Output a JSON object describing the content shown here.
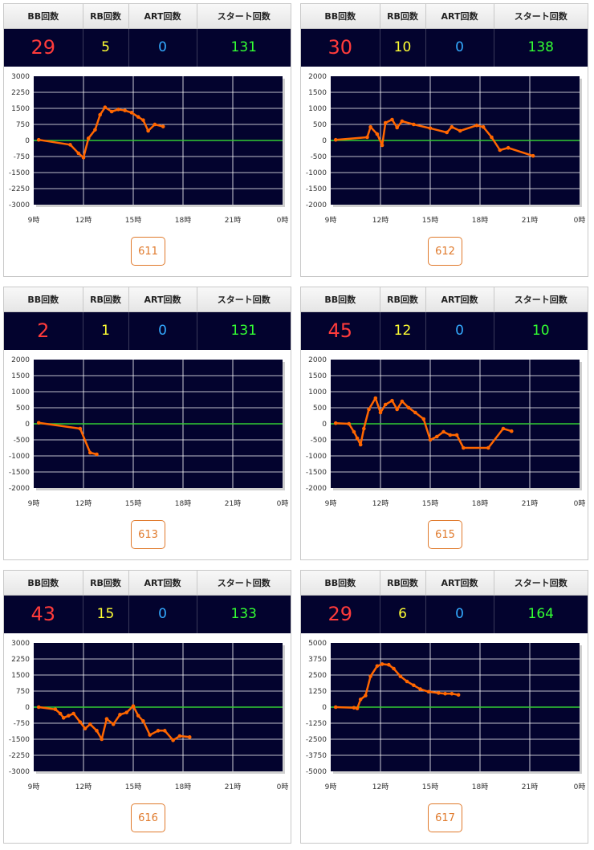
{
  "headers": {
    "bb": "BB回数",
    "rb": "RB回数",
    "art": "ART回数",
    "start": "スタート回数"
  },
  "colors": {
    "background": "#03032e",
    "grid": "#ffffff",
    "zero_line": "#33cc33",
    "series": "#ff6600",
    "bb": "#ff3b3b",
    "rb": "#ffff33",
    "art": "#33aaff",
    "start": "#33ff33",
    "button": "#e07a2c"
  },
  "machines": [
    {
      "bb": "29",
      "rb": "5",
      "art": "0",
      "start": "131",
      "number": "611"
    },
    {
      "bb": "30",
      "rb": "10",
      "art": "0",
      "start": "138",
      "number": "612"
    },
    {
      "bb": "2",
      "rb": "1",
      "art": "0",
      "start": "131",
      "number": "613"
    },
    {
      "bb": "45",
      "rb": "12",
      "art": "0",
      "start": "10",
      "number": "615"
    },
    {
      "bb": "43",
      "rb": "15",
      "art": "0",
      "start": "133",
      "number": "616"
    },
    {
      "bb": "29",
      "rb": "6",
      "art": "0",
      "start": "164",
      "number": "617"
    }
  ],
  "chart_data": [
    {
      "type": "line",
      "x_ticks": [
        "9時",
        "12時",
        "15時",
        "18時",
        "21時",
        "0時"
      ],
      "y_ticks": [
        "3000",
        "2250",
        "1500",
        "750",
        "0",
        "-750",
        "-1500",
        "-2250",
        "-3000"
      ],
      "ylim": [
        -3000,
        3000
      ],
      "xlim": [
        9,
        24
      ],
      "grid": true,
      "points": [
        [
          9.3,
          30
        ],
        [
          11.2,
          -200
        ],
        [
          11.7,
          -600
        ],
        [
          12.0,
          -800
        ],
        [
          12.3,
          100
        ],
        [
          12.7,
          500
        ],
        [
          13.0,
          1200
        ],
        [
          13.3,
          1550
        ],
        [
          13.7,
          1350
        ],
        [
          14.1,
          1450
        ],
        [
          14.5,
          1400
        ],
        [
          14.9,
          1300
        ],
        [
          15.3,
          1100
        ],
        [
          15.6,
          950
        ],
        [
          15.9,
          450
        ],
        [
          16.3,
          750
        ],
        [
          16.8,
          650
        ]
      ]
    },
    {
      "type": "line",
      "x_ticks": [
        "9時",
        "12時",
        "15時",
        "18時",
        "21時",
        "0時"
      ],
      "y_ticks": [
        "2000",
        "1500",
        "1000",
        "500",
        "0",
        "-500",
        "-1000",
        "-1500",
        "-2000"
      ],
      "ylim": [
        -2000,
        2000
      ],
      "xlim": [
        9,
        24
      ],
      "grid": true,
      "points": [
        [
          9.3,
          20
        ],
        [
          11.2,
          100
        ],
        [
          11.4,
          420
        ],
        [
          11.8,
          200
        ],
        [
          12.1,
          -150
        ],
        [
          12.3,
          550
        ],
        [
          12.7,
          650
        ],
        [
          13.0,
          400
        ],
        [
          13.3,
          600
        ],
        [
          14.0,
          500
        ],
        [
          15.0,
          380
        ],
        [
          16.0,
          250
        ],
        [
          16.3,
          420
        ],
        [
          16.8,
          300
        ],
        [
          17.8,
          470
        ],
        [
          18.2,
          420
        ],
        [
          18.7,
          100
        ],
        [
          19.2,
          -300
        ],
        [
          19.7,
          -230
        ],
        [
          21.2,
          -480
        ]
      ]
    },
    {
      "type": "line",
      "x_ticks": [
        "9時",
        "12時",
        "15時",
        "18時",
        "21時",
        "0時"
      ],
      "y_ticks": [
        "2000",
        "1500",
        "1000",
        "500",
        "0",
        "-500",
        "-1000",
        "-1500",
        "-2000"
      ],
      "ylim": [
        -2000,
        2000
      ],
      "xlim": [
        9,
        24
      ],
      "grid": true,
      "points": [
        [
          9.3,
          30
        ],
        [
          11.8,
          -150
        ],
        [
          12.4,
          -900
        ],
        [
          12.8,
          -950
        ]
      ]
    },
    {
      "type": "line",
      "x_ticks": [
        "9時",
        "12時",
        "15時",
        "18時",
        "21時",
        "0時"
      ],
      "y_ticks": [
        "2000",
        "1500",
        "1000",
        "500",
        "0",
        "-500",
        "-1000",
        "-1500",
        "-2000"
      ],
      "ylim": [
        -2000,
        2000
      ],
      "xlim": [
        9,
        24
      ],
      "grid": true,
      "points": [
        [
          9.3,
          20
        ],
        [
          10.1,
          0
        ],
        [
          10.4,
          -250
        ],
        [
          10.6,
          -450
        ],
        [
          10.8,
          -650
        ],
        [
          11.0,
          -150
        ],
        [
          11.3,
          450
        ],
        [
          11.7,
          800
        ],
        [
          12.0,
          350
        ],
        [
          12.3,
          600
        ],
        [
          12.7,
          720
        ],
        [
          13.0,
          450
        ],
        [
          13.3,
          700
        ],
        [
          13.7,
          500
        ],
        [
          14.1,
          350
        ],
        [
          14.6,
          150
        ],
        [
          15.0,
          -500
        ],
        [
          15.4,
          -400
        ],
        [
          15.8,
          -250
        ],
        [
          16.2,
          -350
        ],
        [
          16.6,
          -350
        ],
        [
          17.0,
          -750
        ],
        [
          18.5,
          -750
        ],
        [
          19.4,
          -150
        ],
        [
          19.9,
          -230
        ]
      ]
    },
    {
      "type": "line",
      "x_ticks": [
        "9時",
        "12時",
        "15時",
        "18時",
        "21時",
        "0時"
      ],
      "y_ticks": [
        "3000",
        "2250",
        "1500",
        "750",
        "0",
        "-750",
        "-1500",
        "-2250",
        "-3000"
      ],
      "ylim": [
        -3000,
        3000
      ],
      "xlim": [
        9,
        24
      ],
      "grid": true,
      "points": [
        [
          9.3,
          0
        ],
        [
          10.3,
          -100
        ],
        [
          10.6,
          -300
        ],
        [
          10.8,
          -500
        ],
        [
          11.1,
          -400
        ],
        [
          11.4,
          -300
        ],
        [
          11.8,
          -700
        ],
        [
          12.1,
          -1000
        ],
        [
          12.4,
          -800
        ],
        [
          12.8,
          -1100
        ],
        [
          13.1,
          -1500
        ],
        [
          13.4,
          -550
        ],
        [
          13.8,
          -800
        ],
        [
          14.2,
          -350
        ],
        [
          14.6,
          -250
        ],
        [
          15.0,
          50
        ],
        [
          15.3,
          -400
        ],
        [
          15.6,
          -650
        ],
        [
          16.0,
          -1300
        ],
        [
          16.5,
          -1100
        ],
        [
          16.9,
          -1100
        ],
        [
          17.4,
          -1550
        ],
        [
          17.8,
          -1350
        ],
        [
          18.4,
          -1400
        ]
      ]
    },
    {
      "type": "line",
      "x_ticks": [
        "9時",
        "12時",
        "15時",
        "18時",
        "21時",
        "0時"
      ],
      "y_ticks": [
        "5000",
        "3750",
        "2500",
        "1250",
        "0",
        "-1250",
        "-2500",
        "-3750",
        "-5000"
      ],
      "ylim": [
        -5000,
        5000
      ],
      "xlim": [
        9,
        24
      ],
      "grid": true,
      "points": [
        [
          9.3,
          0
        ],
        [
          10.4,
          -50
        ],
        [
          10.6,
          -100
        ],
        [
          10.8,
          600
        ],
        [
          11.1,
          900
        ],
        [
          11.4,
          2400
        ],
        [
          11.8,
          3200
        ],
        [
          12.1,
          3350
        ],
        [
          12.5,
          3300
        ],
        [
          12.8,
          3000
        ],
        [
          13.2,
          2400
        ],
        [
          13.6,
          2000
        ],
        [
          14.0,
          1700
        ],
        [
          14.4,
          1400
        ],
        [
          14.9,
          1200
        ],
        [
          15.5,
          1100
        ],
        [
          15.9,
          1050
        ],
        [
          16.3,
          1050
        ],
        [
          16.7,
          950
        ]
      ]
    }
  ]
}
